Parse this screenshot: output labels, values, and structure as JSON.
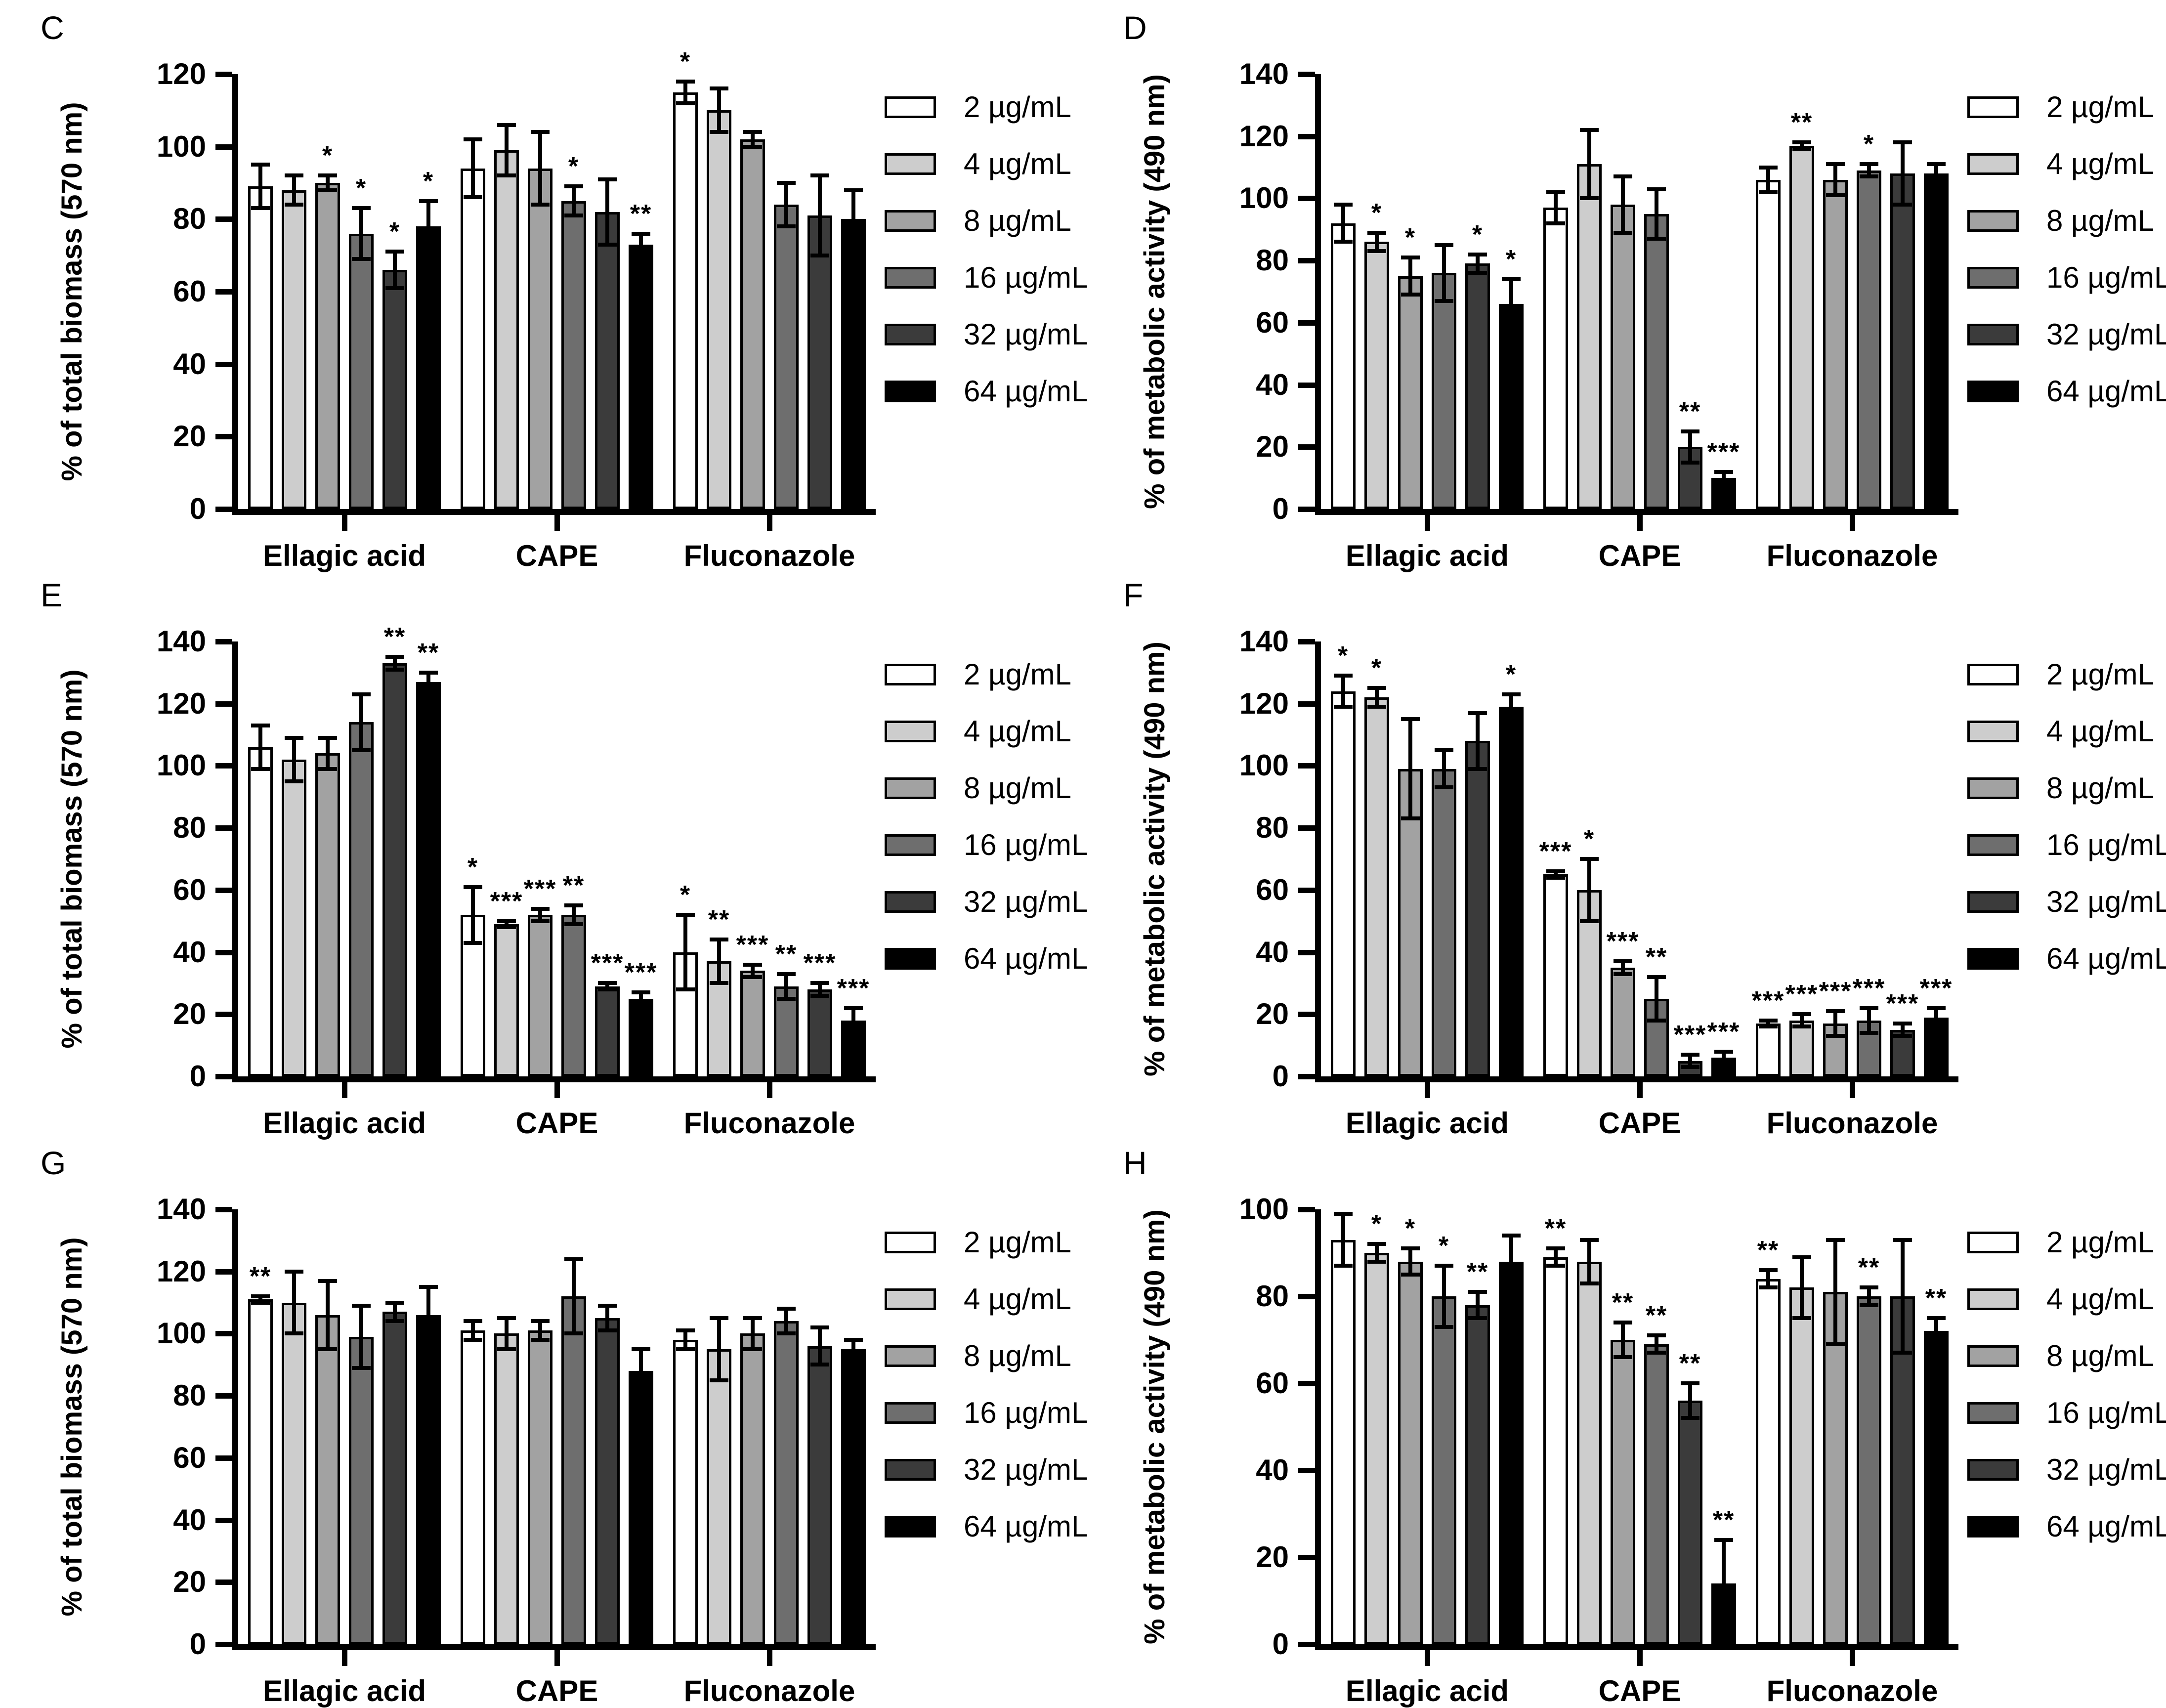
{
  "legend": {
    "items": [
      {
        "label": "2 µg/mL",
        "color": "#ffffff"
      },
      {
        "label": "4 µg/mL",
        "color": "#cdcdcd"
      },
      {
        "label": "8 µg/mL",
        "color": "#a2a2a2"
      },
      {
        "label": "16 µg/mL",
        "color": "#6e6e6e"
      },
      {
        "label": "32 µg/mL",
        "color": "#3b3b3b"
      },
      {
        "label": "64 µg/mL",
        "color": "#000000"
      }
    ]
  },
  "chart_data": [
    {
      "panel": "C",
      "type": "bar",
      "ylabel": "% of total biomass (570 nm)",
      "xlabel": "",
      "ylim": [
        0,
        120
      ],
      "ytick_step": 20,
      "grid": false,
      "legend_position": "right",
      "categories": [
        "Ellagic acid",
        "CAPE",
        "Fluconazole"
      ],
      "series_labels": [
        "2 µg/mL",
        "4 µg/mL",
        "8 µg/mL",
        "16 µg/mL",
        "32 µg/mL",
        "64 µg/mL"
      ],
      "groups": [
        {
          "category": "Ellagic acid",
          "bars": [
            {
              "value": 89,
              "error": 6,
              "sig": ""
            },
            {
              "value": 88,
              "error": 4,
              "sig": ""
            },
            {
              "value": 90,
              "error": 2,
              "sig": "*"
            },
            {
              "value": 76,
              "error": 7,
              "sig": "*"
            },
            {
              "value": 66,
              "error": 5,
              "sig": "*"
            },
            {
              "value": 78,
              "error": 7,
              "sig": "*"
            }
          ]
        },
        {
          "category": "CAPE",
          "bars": [
            {
              "value": 94,
              "error": 8,
              "sig": ""
            },
            {
              "value": 99,
              "error": 7,
              "sig": ""
            },
            {
              "value": 94,
              "error": 10,
              "sig": ""
            },
            {
              "value": 85,
              "error": 4,
              "sig": "*"
            },
            {
              "value": 82,
              "error": 9,
              "sig": ""
            },
            {
              "value": 73,
              "error": 3,
              "sig": "**"
            }
          ]
        },
        {
          "category": "Fluconazole",
          "bars": [
            {
              "value": 115,
              "error": 3,
              "sig": "*"
            },
            {
              "value": 110,
              "error": 6,
              "sig": ""
            },
            {
              "value": 102,
              "error": 2,
              "sig": ""
            },
            {
              "value": 84,
              "error": 6,
              "sig": ""
            },
            {
              "value": 81,
              "error": 11,
              "sig": ""
            },
            {
              "value": 80,
              "error": 8,
              "sig": ""
            }
          ]
        }
      ]
    },
    {
      "panel": "D",
      "type": "bar",
      "ylabel": "% of metabolic activity (490 nm)",
      "xlabel": "",
      "ylim": [
        0,
        140
      ],
      "ytick_step": 20,
      "grid": false,
      "legend_position": "right",
      "categories": [
        "Ellagic acid",
        "CAPE",
        "Fluconazole"
      ],
      "series_labels": [
        "2 µg/mL",
        "4 µg/mL",
        "8 µg/mL",
        "16 µg/mL",
        "32 µg/mL",
        "64 µg/mL"
      ],
      "groups": [
        {
          "category": "Ellagic acid",
          "bars": [
            {
              "value": 92,
              "error": 6,
              "sig": ""
            },
            {
              "value": 86,
              "error": 3,
              "sig": "*"
            },
            {
              "value": 75,
              "error": 6,
              "sig": "*"
            },
            {
              "value": 76,
              "error": 9,
              "sig": ""
            },
            {
              "value": 79,
              "error": 3,
              "sig": "*"
            },
            {
              "value": 66,
              "error": 8,
              "sig": "*"
            }
          ]
        },
        {
          "category": "CAPE",
          "bars": [
            {
              "value": 97,
              "error": 5,
              "sig": ""
            },
            {
              "value": 111,
              "error": 11,
              "sig": ""
            },
            {
              "value": 98,
              "error": 9,
              "sig": ""
            },
            {
              "value": 95,
              "error": 8,
              "sig": ""
            },
            {
              "value": 20,
              "error": 5,
              "sig": "**"
            },
            {
              "value": 10,
              "error": 2,
              "sig": "***"
            }
          ]
        },
        {
          "category": "Fluconazole",
          "bars": [
            {
              "value": 106,
              "error": 4,
              "sig": ""
            },
            {
              "value": 117,
              "error": 1,
              "sig": "**"
            },
            {
              "value": 106,
              "error": 5,
              "sig": ""
            },
            {
              "value": 109,
              "error": 2,
              "sig": "*"
            },
            {
              "value": 108,
              "error": 10,
              "sig": ""
            },
            {
              "value": 108,
              "error": 3,
              "sig": ""
            }
          ]
        }
      ]
    },
    {
      "panel": "E",
      "type": "bar",
      "ylabel": "% of total biomass (570 nm)",
      "xlabel": "",
      "ylim": [
        0,
        140
      ],
      "ytick_step": 20,
      "grid": false,
      "legend_position": "right",
      "categories": [
        "Ellagic acid",
        "CAPE",
        "Fluconazole"
      ],
      "series_labels": [
        "2 µg/mL",
        "4 µg/mL",
        "8 µg/mL",
        "16 µg/mL",
        "32 µg/mL",
        "64 µg/mL"
      ],
      "groups": [
        {
          "category": "Ellagic acid",
          "bars": [
            {
              "value": 106,
              "error": 7,
              "sig": ""
            },
            {
              "value": 102,
              "error": 7,
              "sig": ""
            },
            {
              "value": 104,
              "error": 5,
              "sig": ""
            },
            {
              "value": 114,
              "error": 9,
              "sig": ""
            },
            {
              "value": 133,
              "error": 2,
              "sig": "**"
            },
            {
              "value": 127,
              "error": 3,
              "sig": "**"
            }
          ]
        },
        {
          "category": "CAPE",
          "bars": [
            {
              "value": 52,
              "error": 9,
              "sig": "*"
            },
            {
              "value": 49,
              "error": 1,
              "sig": "***"
            },
            {
              "value": 52,
              "error": 2,
              "sig": "***"
            },
            {
              "value": 52,
              "error": 3,
              "sig": "**"
            },
            {
              "value": 29,
              "error": 1,
              "sig": "***"
            },
            {
              "value": 25,
              "error": 2,
              "sig": "***"
            }
          ]
        },
        {
          "category": "Fluconazole",
          "bars": [
            {
              "value": 40,
              "error": 12,
              "sig": "*"
            },
            {
              "value": 37,
              "error": 7,
              "sig": "**"
            },
            {
              "value": 34,
              "error": 2,
              "sig": "***"
            },
            {
              "value": 29,
              "error": 4,
              "sig": "**"
            },
            {
              "value": 28,
              "error": 2,
              "sig": "***"
            },
            {
              "value": 18,
              "error": 4,
              "sig": "***"
            }
          ]
        }
      ]
    },
    {
      "panel": "F",
      "type": "bar",
      "ylabel": "% of metabolic activity (490 nm)",
      "xlabel": "",
      "ylim": [
        0,
        140
      ],
      "ytick_step": 20,
      "grid": false,
      "legend_position": "right",
      "categories": [
        "Ellagic acid",
        "CAPE",
        "Fluconazole"
      ],
      "series_labels": [
        "2 µg/mL",
        "4 µg/mL",
        "8 µg/mL",
        "16 µg/mL",
        "32 µg/mL",
        "64 µg/mL"
      ],
      "groups": [
        {
          "category": "Ellagic acid",
          "bars": [
            {
              "value": 124,
              "error": 5,
              "sig": "*"
            },
            {
              "value": 122,
              "error": 3,
              "sig": "*"
            },
            {
              "value": 99,
              "error": 16,
              "sig": ""
            },
            {
              "value": 99,
              "error": 6,
              "sig": ""
            },
            {
              "value": 108,
              "error": 9,
              "sig": ""
            },
            {
              "value": 119,
              "error": 4,
              "sig": "*"
            }
          ]
        },
        {
          "category": "CAPE",
          "bars": [
            {
              "value": 65,
              "error": 1,
              "sig": "***"
            },
            {
              "value": 60,
              "error": 10,
              "sig": "*"
            },
            {
              "value": 35,
              "error": 2,
              "sig": "***"
            },
            {
              "value": 25,
              "error": 7,
              "sig": "**"
            },
            {
              "value": 5,
              "error": 2,
              "sig": "***"
            },
            {
              "value": 6,
              "error": 2,
              "sig": "***"
            }
          ]
        },
        {
          "category": "Fluconazole",
          "bars": [
            {
              "value": 17,
              "error": 1,
              "sig": "***"
            },
            {
              "value": 18,
              "error": 2,
              "sig": "***"
            },
            {
              "value": 17,
              "error": 4,
              "sig": "***"
            },
            {
              "value": 18,
              "error": 4,
              "sig": "***"
            },
            {
              "value": 15,
              "error": 2,
              "sig": "***"
            },
            {
              "value": 19,
              "error": 3,
              "sig": "***"
            }
          ]
        }
      ]
    },
    {
      "panel": "G",
      "type": "bar",
      "ylabel": "% of total biomass (570 nm)",
      "xlabel": "",
      "ylim": [
        0,
        140
      ],
      "ytick_step": 20,
      "grid": false,
      "legend_position": "right",
      "categories": [
        "Ellagic acid",
        "CAPE",
        "Fluconazole"
      ],
      "series_labels": [
        "2 µg/mL",
        "4 µg/mL",
        "8 µg/mL",
        "16 µg/mL",
        "32 µg/mL",
        "64 µg/mL"
      ],
      "groups": [
        {
          "category": "Ellagic acid",
          "bars": [
            {
              "value": 111,
              "error": 1,
              "sig": "**"
            },
            {
              "value": 110,
              "error": 10,
              "sig": ""
            },
            {
              "value": 106,
              "error": 11,
              "sig": ""
            },
            {
              "value": 99,
              "error": 10,
              "sig": ""
            },
            {
              "value": 107,
              "error": 3,
              "sig": ""
            },
            {
              "value": 106,
              "error": 9,
              "sig": ""
            }
          ]
        },
        {
          "category": "CAPE",
          "bars": [
            {
              "value": 101,
              "error": 3,
              "sig": ""
            },
            {
              "value": 100,
              "error": 5,
              "sig": ""
            },
            {
              "value": 101,
              "error": 3,
              "sig": ""
            },
            {
              "value": 112,
              "error": 12,
              "sig": ""
            },
            {
              "value": 105,
              "error": 4,
              "sig": ""
            },
            {
              "value": 88,
              "error": 7,
              "sig": ""
            }
          ]
        },
        {
          "category": "Fluconazole",
          "bars": [
            {
              "value": 98,
              "error": 3,
              "sig": ""
            },
            {
              "value": 95,
              "error": 10,
              "sig": ""
            },
            {
              "value": 100,
              "error": 5,
              "sig": ""
            },
            {
              "value": 104,
              "error": 4,
              "sig": ""
            },
            {
              "value": 96,
              "error": 6,
              "sig": ""
            },
            {
              "value": 95,
              "error": 3,
              "sig": ""
            }
          ]
        }
      ]
    },
    {
      "panel": "H",
      "type": "bar",
      "ylabel": "% of metabolic activity (490 nm)",
      "xlabel": "",
      "ylim": [
        0,
        100
      ],
      "ytick_step": 20,
      "grid": false,
      "legend_position": "right",
      "categories": [
        "Ellagic acid",
        "CAPE",
        "Fluconazole"
      ],
      "series_labels": [
        "2 µg/mL",
        "4 µg/mL",
        "8 µg/mL",
        "16 µg/mL",
        "32 µg/mL",
        "64 µg/mL"
      ],
      "groups": [
        {
          "category": "Ellagic acid",
          "bars": [
            {
              "value": 93,
              "error": 6,
              "sig": ""
            },
            {
              "value": 90,
              "error": 2,
              "sig": "*"
            },
            {
              "value": 88,
              "error": 3,
              "sig": "*"
            },
            {
              "value": 80,
              "error": 7,
              "sig": "*"
            },
            {
              "value": 78,
              "error": 3,
              "sig": "**"
            },
            {
              "value": 88,
              "error": 6,
              "sig": ""
            }
          ]
        },
        {
          "category": "CAPE",
          "bars": [
            {
              "value": 89,
              "error": 2,
              "sig": "**"
            },
            {
              "value": 88,
              "error": 5,
              "sig": ""
            },
            {
              "value": 70,
              "error": 4,
              "sig": "**"
            },
            {
              "value": 69,
              "error": 2,
              "sig": "**"
            },
            {
              "value": 56,
              "error": 4,
              "sig": "**"
            },
            {
              "value": 14,
              "error": 10,
              "sig": "**"
            }
          ]
        },
        {
          "category": "Fluconazole",
          "bars": [
            {
              "value": 84,
              "error": 2,
              "sig": "**"
            },
            {
              "value": 82,
              "error": 7,
              "sig": ""
            },
            {
              "value": 81,
              "error": 12,
              "sig": ""
            },
            {
              "value": 80,
              "error": 2,
              "sig": "**"
            },
            {
              "value": 80,
              "error": 13,
              "sig": ""
            },
            {
              "value": 72,
              "error": 3,
              "sig": "**"
            }
          ]
        }
      ]
    }
  ]
}
